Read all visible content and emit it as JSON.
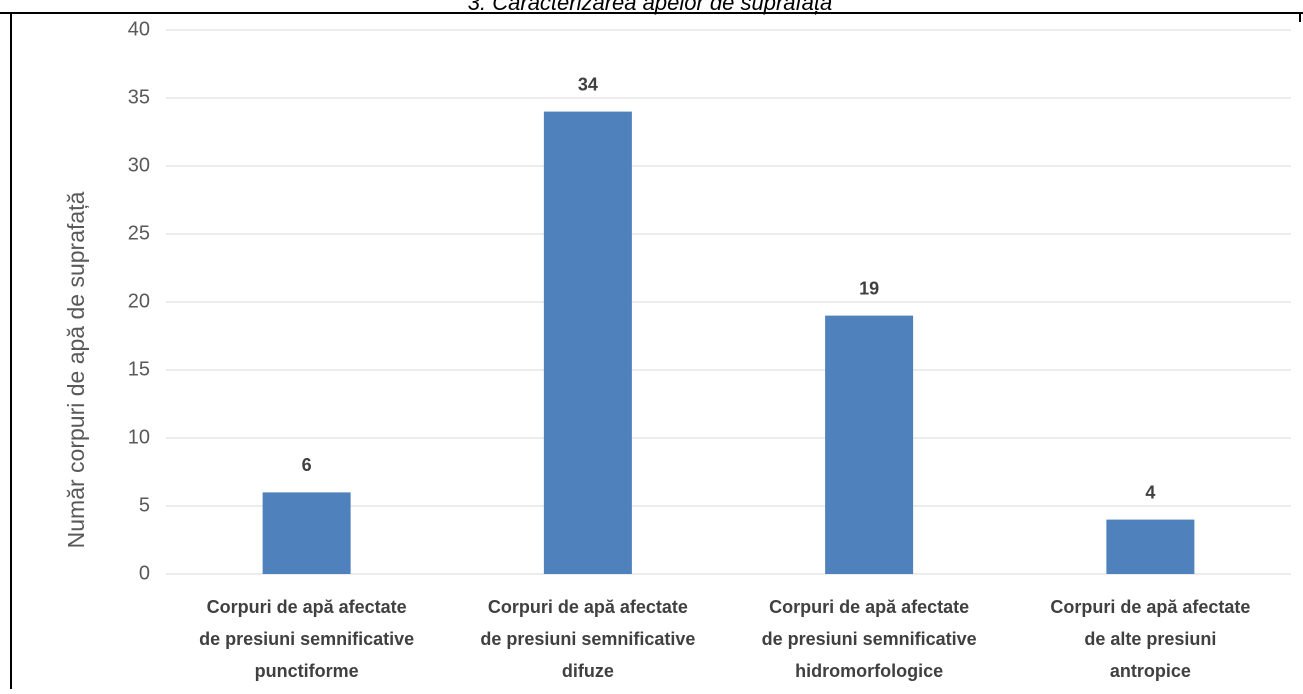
{
  "header": "3. Caracterizarea apelor de suprafață",
  "chart_data": {
    "type": "bar",
    "y_axis_label": "Număr corpuri  de apă de suprafață",
    "categories": [
      [
        "Corpuri de apă afectate",
        "de presiuni semnificative",
        "punctiforme"
      ],
      [
        "Corpuri de apă afectate",
        "de presiuni semnificative",
        "difuze"
      ],
      [
        "Corpuri de apă afectate",
        "de presiuni semnificative",
        "hidromorfologice"
      ],
      [
        "Corpuri de apă afectate",
        "de alte presiuni",
        "antropice"
      ]
    ],
    "values": [
      6,
      34,
      19,
      4
    ],
    "color": "#4f81bd",
    "ylim": [
      0,
      40
    ],
    "yticks": [
      0,
      5,
      10,
      15,
      20,
      25,
      30,
      35,
      40
    ],
    "grid": true
  }
}
